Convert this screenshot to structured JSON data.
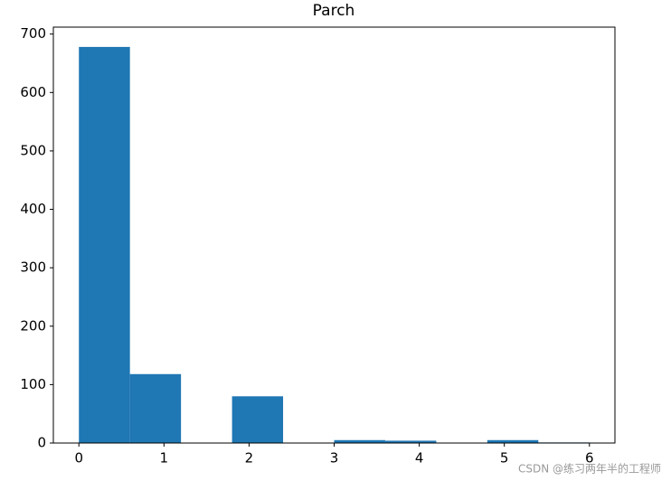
{
  "chart_data": {
    "type": "histogram",
    "title": "Parch",
    "bins": [
      0,
      0.6,
      1.2,
      1.8,
      2.4,
      3.0,
      3.6,
      4.2,
      4.8,
      5.4,
      6.0
    ],
    "values": [
      678,
      118,
      0,
      80,
      0,
      5,
      4,
      0,
      5,
      1
    ],
    "color": "#1f77b4",
    "xlim": [
      -0.3,
      6.3
    ],
    "xticks": [
      0,
      1,
      2,
      3,
      4,
      5,
      6
    ],
    "ylim": [
      0,
      711.9
    ],
    "yticks": [
      0,
      100,
      200,
      300,
      400,
      500,
      600,
      700
    ],
    "grid": false
  },
  "watermark": "CSDN @练习两年半的工程师"
}
